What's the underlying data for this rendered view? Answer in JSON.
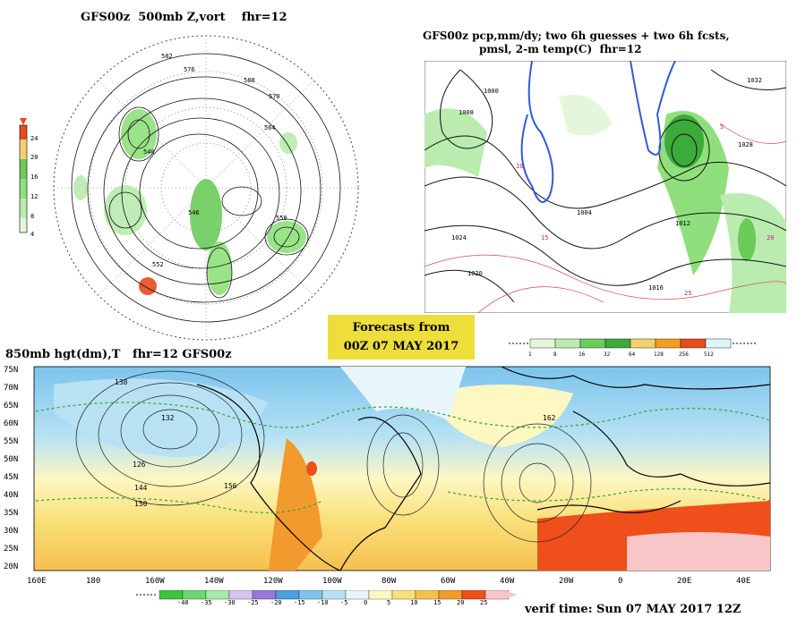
{
  "panel_500mb": {
    "title": "GFS00z  500mb Z,vort    fhr=12",
    "legend_values": [
      "24",
      "20",
      "16",
      "12",
      "8",
      "4"
    ],
    "legend_colors": [
      "#e74c1c",
      "#f4d06a",
      "#6ccc5a",
      "#8fe07c",
      "#b9ecae",
      "#e4f7dc"
    ],
    "contour_labels": [
      "582",
      "576",
      "570",
      "564",
      "558",
      "552",
      "546",
      "540",
      "588"
    ]
  },
  "panel_pcp": {
    "title_line1": "GFS00z pcp,mm/dy; two 6h guesses + two 6h fcsts,",
    "title_line2": "pmsl, 2-m temp(C)  fhr=12",
    "pressure_labels": [
      "1000",
      "1004",
      "1008",
      "1012",
      "1016",
      "1020",
      "1024",
      "1028",
      "1032"
    ],
    "temp_labels": [
      "5",
      "10",
      "15",
      "20",
      "25"
    ],
    "legend_values": [
      "1",
      "8",
      "16",
      "32",
      "64",
      "128",
      "256",
      "512"
    ],
    "legend_colors": [
      "#e4f7dc",
      "#b9ecae",
      "#6ccc5a",
      "#3cab3c",
      "#f4d06a",
      "#f39c1f",
      "#e74c1c",
      "#e0f4f8"
    ]
  },
  "forecast_box": {
    "line1": "Forecasts from",
    "line2": "00Z 07 MAY 2017"
  },
  "panel_850mb": {
    "title": "850mb hgt(dm),T   fhr=12 GFS00z",
    "lat_labels": [
      "75N",
      "70N",
      "65N",
      "60N",
      "55N",
      "50N",
      "45N",
      "40N",
      "35N",
      "30N",
      "25N",
      "20N"
    ],
    "lon_labels": [
      "160E",
      "180",
      "160W",
      "140W",
      "120W",
      "100W",
      "80W",
      "60W",
      "40W",
      "20W",
      "0",
      "20E",
      "40E"
    ],
    "contour_labels": [
      "138",
      "132",
      "126",
      "144",
      "150",
      "156",
      "162"
    ],
    "temp_legend_values": [
      "-40",
      "-35",
      "-30",
      "-25",
      "-20",
      "-15",
      "-10",
      "-5",
      "0",
      "5",
      "10",
      "15",
      "20",
      "25"
    ],
    "temp_legend_colors": [
      "#3cc43c",
      "#6ed66e",
      "#a8e8a8",
      "#d6c4f0",
      "#9a78d8",
      "#4f9ee0",
      "#7cc4ec",
      "#b8e2f4",
      "#e8f6fb",
      "#fdf7c2",
      "#f9e07a",
      "#f6c04e",
      "#f39a2e",
      "#ef4f1a",
      "#f8c6c6"
    ]
  },
  "verif_time": "verif time: Sun 07 MAY 2017 12Z"
}
